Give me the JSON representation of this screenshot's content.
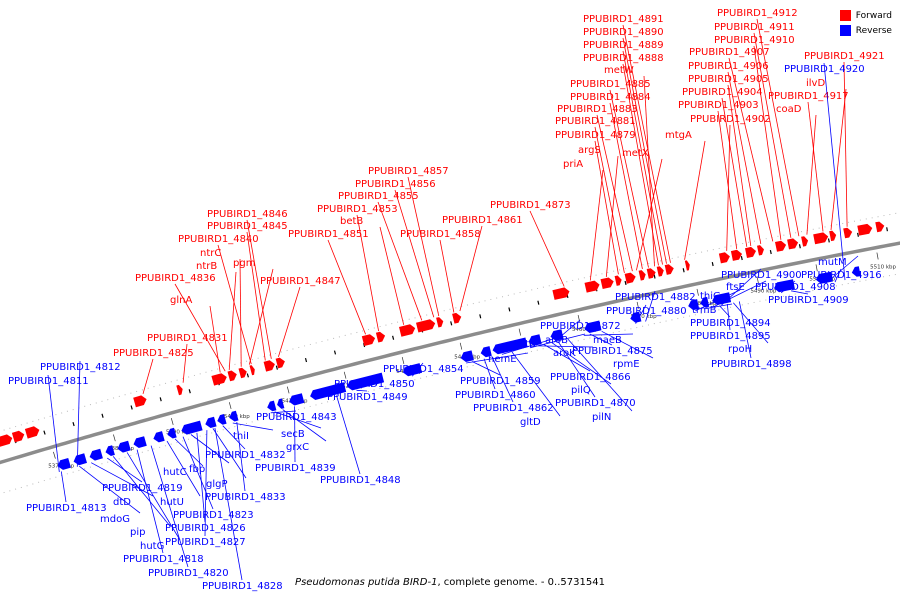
{
  "colors": {
    "forward": "#ff0000",
    "reverse": "#0000ff",
    "backbone": "#8c8c8c"
  },
  "legend": {
    "forward": "Forward",
    "reverse": "Reverse"
  },
  "caption": {
    "organism": "Pseudomonas putida BIRD-1",
    "rest": ", complete genome. - 0..5731541"
  },
  "ticks": [
    "5370 kbp",
    "5380 kbp",
    "5390 kbp",
    "5400 kbp",
    "5410 kbp",
    "5420 kbp",
    "5430 kbp",
    "5440 kbp",
    "5450 kbp",
    "5460 kbp",
    "5470 kbp",
    "5480 kbp",
    "5490 kbp",
    "5500 kbp",
    "5510 kbp"
  ],
  "forward_labels": [
    "PPUBIRD1_4831",
    "PPUBIRD1_4825",
    "glnA",
    "PPUBIRD1_4836",
    "ntrB",
    "ntrC",
    "pgm",
    "PPUBIRD1_4840",
    "PPUBIRD1_4845",
    "PPUBIRD1_4846",
    "PPUBIRD1_4847",
    "PPUBIRD1_4851",
    "PPUBIRD1_4853",
    "betB",
    "PPUBIRD1_4855",
    "PPUBIRD1_4856",
    "PPUBIRD1_4857",
    "PPUBIRD1_4858",
    "PPUBIRD1_4861",
    "PPUBIRD1_4873",
    "priA",
    "argS",
    "PPUBIRD1_4879",
    "PPUBIRD1_4881",
    "PPUBIRD1_4883",
    "PPUBIRD1_4884",
    "PPUBIRD1_4885",
    "metW",
    "PPUBIRD1_4888",
    "PPUBIRD1_4889",
    "PPUBIRD1_4890",
    "PPUBIRD1_4891",
    "metX",
    "mtgA",
    "PPUBIRD1_4902",
    "PPUBIRD1_4903",
    "PPUBIRD1_4904",
    "PPUBIRD1_4905",
    "PPUBIRD1_4906",
    "PPUBIRD1_4907",
    "PPUBIRD1_4910",
    "PPUBIRD1_4911",
    "PPUBIRD1_4912",
    "coaD",
    "PPUBIRD1_4917",
    "ilvD",
    "PPUBIRD1_4921"
  ],
  "reverse_labels": [
    "PPUBIRD1_4812",
    "PPUBIRD1_4811",
    "PPUBIRD1_4813",
    "mdoG",
    "dtD",
    "PPUBIRD1_4819",
    "pip",
    "hutG",
    "PPUBIRD1_4818",
    "PPUBIRD1_4820",
    "hutU",
    "hutC",
    "PPUBIRD1_4823",
    "fbp",
    "PPUBIRD1_4826",
    "PPUBIRD1_4827",
    "glgP",
    "PPUBIRD1_4828",
    "PPUBIRD1_4832",
    "thiI",
    "PPUBIRD1_4833",
    "PPUBIRD1_4843",
    "secB",
    "grxC",
    "PPUBIRD1_4839",
    "PPUBIRD1_4848",
    "PPUBIRD1_4849",
    "PPUBIRD1_4850",
    "PPUBIRD1_4854",
    "hemE",
    "PPUBIRD1_4859",
    "PPUBIRD1_4860",
    "PPUBIRD1_4862",
    "gltB",
    "gltD",
    "aroB",
    "aroK",
    "PPUBIRD1_4866",
    "pilQ",
    "PPUBIRD1_4870",
    "pilN",
    "PPUBIRD1_4872",
    "maeB",
    "PPUBIRD1_4875",
    "rpmE",
    "PPUBIRD1_4880",
    "PPUBIRD1_4882",
    "thiG",
    "trmB",
    "ftsE",
    "PPUBIRD1_4900",
    "PPUBIRD1_4894",
    "PPUBIRD1_4895",
    "rpoH",
    "PPUBIRD1_4898",
    "PPUBIRD1_4908",
    "PPUBIRD1_4909",
    "mutM",
    "PPUBIRD1_4916",
    "PPUBIRD1_4920"
  ]
}
